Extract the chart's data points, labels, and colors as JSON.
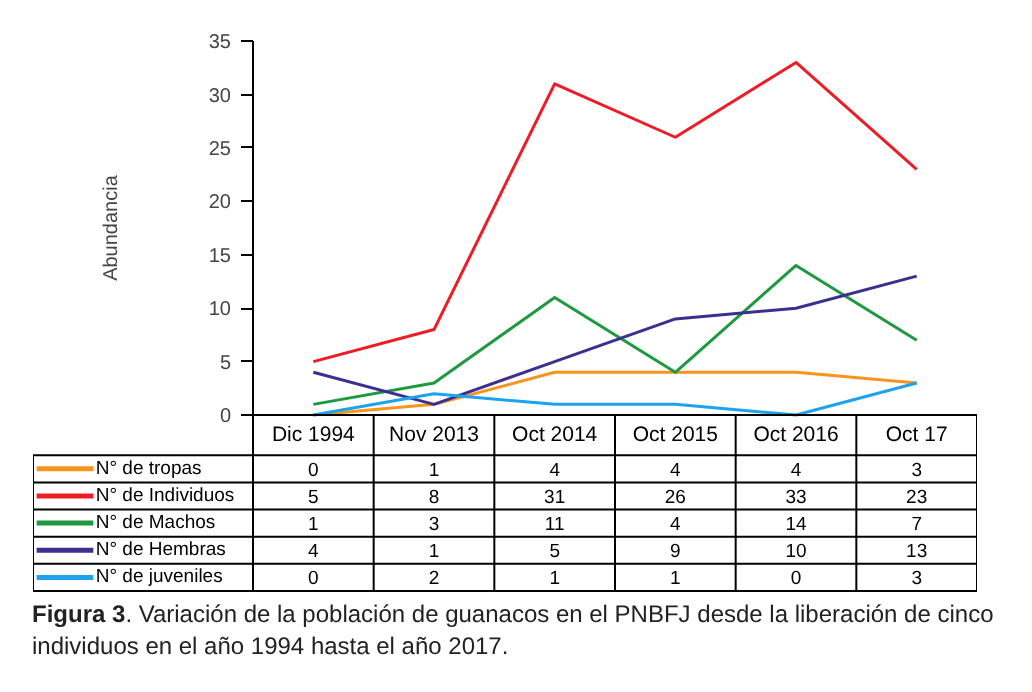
{
  "chart_data": {
    "type": "line",
    "ylabel": "Abundancia",
    "categories": [
      "Dic 1994",
      "Nov 2013",
      "Oct 2014",
      "Oct 2015",
      "Oct 2016",
      "Oct 17"
    ],
    "series": [
      {
        "name": "N° de tropas",
        "color": "#f7941d",
        "values": [
          0,
          1,
          4,
          4,
          4,
          3
        ]
      },
      {
        "name": "N° de Individuos",
        "color": "#ee1c25",
        "values": [
          5,
          8,
          31,
          26,
          33,
          23
        ]
      },
      {
        "name": "N° de Machos",
        "color": "#1e9940",
        "values": [
          1,
          3,
          11,
          4,
          14,
          7
        ]
      },
      {
        "name": "N° de Hembras",
        "color": "#3b2f8f",
        "values": [
          4,
          1,
          5,
          9,
          10,
          13
        ]
      },
      {
        "name": "N° de juveniles",
        "color": "#1ca3ec",
        "values": [
          0,
          2,
          1,
          1,
          0,
          3
        ]
      }
    ],
    "ylim": [
      0,
      35
    ],
    "yticks": [
      0,
      5,
      10,
      15,
      20,
      25,
      30,
      35
    ],
    "grid": false,
    "legend": "bottom",
    "data_labels": true,
    "marker": "none",
    "annotations": [
      "Figura 3. Variación de la población de guanacos en el PNBFJ desde la liberación de cinco individuos en el año 1994 hasta el año 2017."
    ]
  }
}
